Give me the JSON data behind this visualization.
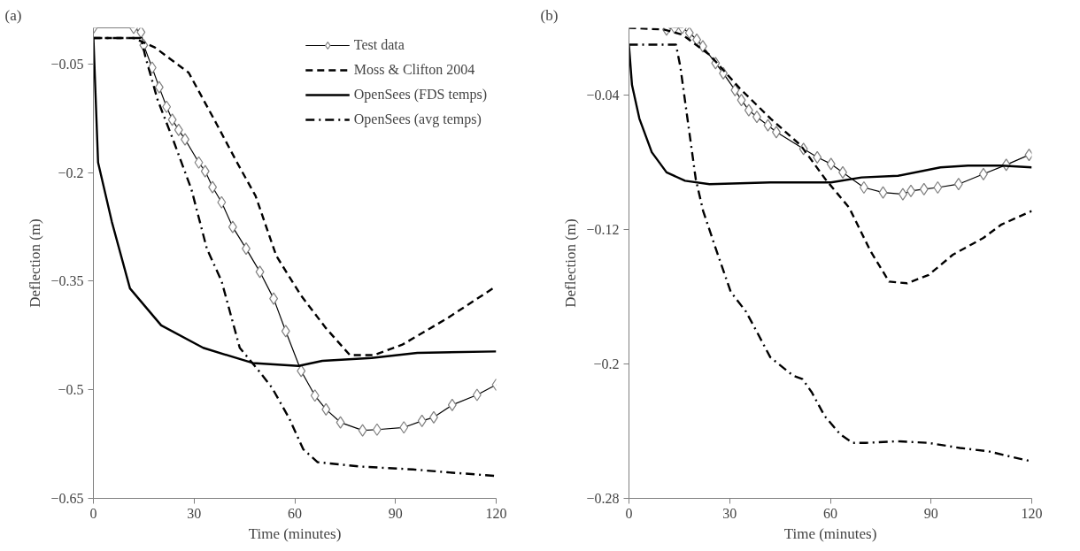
{
  "chart_data": [
    {
      "type": "line",
      "title": "(a)",
      "xlabel": "Time (minutes)",
      "ylabel": "Deflection (m)",
      "xlim": [
        0,
        120
      ],
      "xticks": [
        0,
        30,
        60,
        90,
        120
      ],
      "ylim": [
        -0.65,
        0
      ],
      "yticks": [
        -0.65,
        -0.5,
        -0.35,
        -0.2,
        -0.05
      ],
      "grid": false,
      "legend": "top right",
      "series": [
        {
          "name": "Test data",
          "color": "#000000",
          "marker": "diamond",
          "line_style": "solid",
          "x": [
            0,
            12,
            14.2,
            15,
            17.5,
            19.6,
            21.8,
            23.5,
            25.4,
            27.3,
            31.4,
            33.3,
            35.5,
            38.2,
            41.5,
            45.5,
            49.6,
            53.7,
            57.3,
            61.9,
            66,
            69.3,
            73.6,
            80.2,
            84.5,
            92.5,
            97.9,
            101.4,
            106.9,
            114.3,
            120
          ],
          "values": [
            0,
            0,
            -0.006,
            -0.024,
            -0.055,
            -0.082,
            -0.109,
            -0.127,
            -0.141,
            -0.154,
            -0.186,
            -0.198,
            -0.22,
            -0.241,
            -0.275,
            -0.305,
            -0.337,
            -0.374,
            -0.419,
            -0.474,
            -0.508,
            -0.527,
            -0.545,
            -0.556,
            -0.555,
            -0.552,
            -0.543,
            -0.538,
            -0.521,
            -0.507,
            -0.493
          ]
        },
        {
          "name": "Moss & Clifton 2004",
          "color": "#000000",
          "marker": "none",
          "line_style": "dashed",
          "x": [
            0,
            12,
            18.3,
            28.4,
            36.5,
            42.8,
            48.3,
            54.5,
            61.9,
            69.3,
            76.4,
            83.7,
            91.9,
            105.5,
            120
          ],
          "values": [
            -0.014,
            -0.014,
            -0.027,
            -0.062,
            -0.131,
            -0.186,
            -0.232,
            -0.315,
            -0.37,
            -0.415,
            -0.452,
            -0.452,
            -0.438,
            -0.401,
            -0.357
          ]
        },
        {
          "name": "OpenSees (FDS temps)",
          "color": "#000000",
          "marker": "none",
          "line_style": "solid",
          "x": [
            0,
            1.4,
            5.5,
            10.9,
            20.2,
            32.7,
            47.5,
            61.1,
            68.2,
            82.9,
            96.5,
            120
          ],
          "values": [
            -0.013,
            -0.186,
            -0.268,
            -0.36,
            -0.411,
            -0.442,
            -0.463,
            -0.467,
            -0.46,
            -0.456,
            -0.449,
            -0.447
          ]
        },
        {
          "name": "OpenSees (avg temps)",
          "color": "#000000",
          "marker": "none",
          "line_style": "dashdot",
          "x": [
            0,
            14.2,
            15.5,
            19.1,
            23.7,
            29.2,
            33.8,
            38.2,
            43.6,
            48.8,
            53.2,
            58.4,
            62.5,
            66.8,
            79.4,
            95.2,
            105.5,
            120
          ],
          "values": [
            -0.014,
            -0.014,
            -0.04,
            -0.099,
            -0.154,
            -0.223,
            -0.305,
            -0.35,
            -0.442,
            -0.471,
            -0.497,
            -0.54,
            -0.582,
            -0.6,
            -0.606,
            -0.61,
            -0.614,
            -0.619
          ]
        }
      ]
    },
    {
      "type": "line",
      "title": "(b)",
      "xlabel": "Time (minutes)",
      "ylabel": "Deflection (m)",
      "xlim": [
        0,
        120
      ],
      "xticks": [
        0,
        30,
        60,
        90,
        120
      ],
      "ylim": [
        -0.28,
        0
      ],
      "yticks": [
        -0.28,
        -0.2,
        -0.12,
        -0.04
      ],
      "grid": false,
      "series": [
        {
          "color": "#000000",
          "marker": "diamond",
          "line_style": "solid",
          "x": [
            11.2,
            13.6,
            15.9,
            18,
            20.2,
            22,
            25.8,
            28.1,
            31.6,
            33.5,
            35.7,
            38.1,
            41.4,
            43.9,
            52,
            56.1,
            60.2,
            63.7,
            70,
            75.7,
            81.6,
            84,
            87.9,
            92,
            98.2,
            105.6,
            112.4,
            119.2
          ],
          "values": [
            -0.001,
            0,
            0,
            -0.003,
            -0.007,
            -0.011,
            -0.021,
            -0.027,
            -0.037,
            -0.043,
            -0.049,
            -0.053,
            -0.058,
            -0.062,
            -0.072,
            -0.077,
            -0.081,
            -0.086,
            -0.095,
            -0.098,
            -0.099,
            -0.097,
            -0.096,
            -0.095,
            -0.093,
            -0.087,
            -0.0815,
            -0.0756
          ]
        },
        {
          "color": "#000000",
          "marker": "none",
          "line_style": "dashed",
          "x": [
            0,
            10.4,
            15.9,
            24,
            33,
            42.2,
            51.2,
            58.5,
            65.6,
            72,
            77.5,
            82.9,
            89.3,
            96.5,
            105.6,
            111,
            120
          ],
          "values": [
            0,
            -0.001,
            -0.004,
            -0.016,
            -0.036,
            -0.054,
            -0.07,
            -0.09,
            -0.107,
            -0.133,
            -0.151,
            -0.152,
            -0.147,
            -0.135,
            -0.125,
            -0.117,
            -0.109
          ]
        },
        {
          "color": "#000000",
          "marker": "none",
          "line_style": "solid",
          "x": [
            0,
            0.9,
            3.1,
            6.8,
            11.2,
            16.7,
            24,
            42.1,
            60.2,
            69.3,
            80.2,
            92.8,
            101,
            111,
            120
          ],
          "values": [
            -0.0105,
            -0.034,
            -0.054,
            -0.074,
            -0.086,
            -0.091,
            -0.093,
            -0.092,
            -0.092,
            -0.089,
            -0.088,
            -0.083,
            -0.082,
            -0.082,
            -0.083
          ]
        },
        {
          "color": "#000000",
          "marker": "none",
          "line_style": "dashdot",
          "x": [
            0,
            14,
            15.3,
            17.7,
            19.9,
            22.1,
            25.8,
            30.3,
            34.9,
            38.4,
            42.1,
            48.9,
            51.7,
            54.5,
            58.3,
            63,
            66.7,
            70.5,
            79.9,
            89.3,
            98.6,
            107.1,
            115.5,
            120
          ],
          "values": [
            -0.01,
            -0.01,
            -0.023,
            -0.058,
            -0.09,
            -0.109,
            -0.131,
            -0.157,
            -0.169,
            -0.182,
            -0.196,
            -0.207,
            -0.209,
            -0.217,
            -0.231,
            -0.242,
            -0.247,
            -0.247,
            -0.246,
            -0.247,
            -0.25,
            -0.252,
            -0.256,
            -0.258
          ]
        }
      ]
    }
  ]
}
